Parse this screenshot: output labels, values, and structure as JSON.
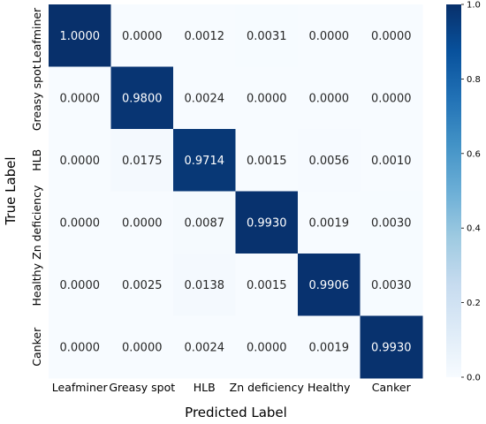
{
  "chart_data": {
    "type": "heatmap",
    "title": "",
    "xlabel": "Predicted Label",
    "ylabel": "True Label",
    "x_categories": [
      "Leafminer",
      "Greasy spot",
      "HLB",
      "Zn deficiency",
      "Healthy",
      "Canker"
    ],
    "y_categories": [
      "Leafminer",
      "Greasy spot",
      "HLB",
      "Zn deficiency",
      "Healthy",
      "Canker"
    ],
    "values": [
      [
        1.0,
        0.0,
        0.0012,
        0.0031,
        0.0,
        0.0
      ],
      [
        0.0,
        0.98,
        0.0024,
        0.0,
        0.0,
        0.0
      ],
      [
        0.0,
        0.0175,
        0.9714,
        0.0015,
        0.0056,
        0.001
      ],
      [
        0.0,
        0.0,
        0.0087,
        0.993,
        0.0019,
        0.003
      ],
      [
        0.0,
        0.0025,
        0.0138,
        0.0015,
        0.9906,
        0.003
      ],
      [
        0.0,
        0.0,
        0.0024,
        0.0,
        0.0019,
        0.993
      ]
    ],
    "value_labels": [
      [
        "1.0000",
        "0.0000",
        "0.0012",
        "0.0031",
        "0.0000",
        "0.0000"
      ],
      [
        "0.0000",
        "0.9800",
        "0.0024",
        "0.0000",
        "0.0000",
        "0.0000"
      ],
      [
        "0.0000",
        "0.0175",
        "0.9714",
        "0.0015",
        "0.0056",
        "0.0010"
      ],
      [
        "0.0000",
        "0.0000",
        "0.0087",
        "0.9930",
        "0.0019",
        "0.0030"
      ],
      [
        "0.0000",
        "0.0025",
        "0.0138",
        "0.0015",
        "0.9906",
        "0.0030"
      ],
      [
        "0.0000",
        "0.0000",
        "0.0024",
        "0.0000",
        "0.0019",
        "0.9930"
      ]
    ],
    "colorbar": {
      "min": 0.0,
      "max": 1.0,
      "ticks": [
        "0.0",
        "0.2",
        "0.4",
        "0.6",
        "0.8",
        "1.0"
      ],
      "colormap": "Blues"
    },
    "grid": false,
    "legend": "none"
  }
}
